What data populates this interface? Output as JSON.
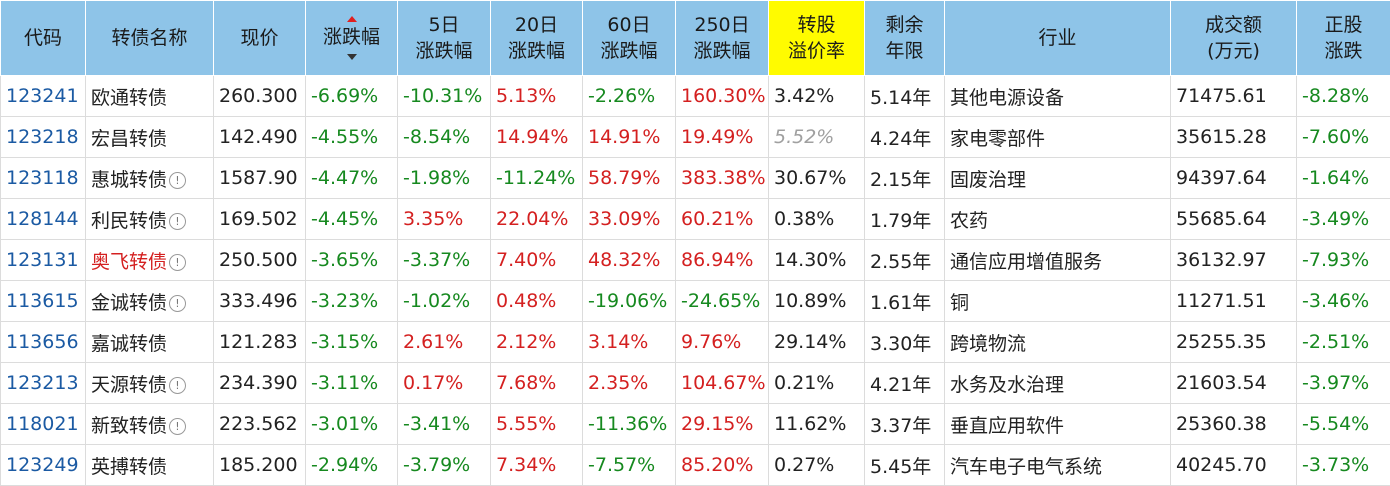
{
  "headers": {
    "code": "代码",
    "name": "转债名称",
    "price": "现价",
    "change": "涨跌幅",
    "d5_line1": "5日",
    "d5_line2": "涨跌幅",
    "d20_line1": "20日",
    "d20_line2": "涨跌幅",
    "d60_line1": "60日",
    "d60_line2": "涨跌幅",
    "d250_line1": "250日",
    "d250_line2": "涨跌幅",
    "premium_line1": "转股",
    "premium_line2": "溢价率",
    "remain_line1": "剩余",
    "remain_line2": "年限",
    "industry": "行业",
    "volume_line1": "成交额",
    "volume_line2": "(万元)",
    "stock_line1": "正股",
    "stock_line2": "涨跌"
  },
  "colors": {
    "header_bg": "#8ec4e8",
    "highlight_header_bg": "#fffb00",
    "up": "#d42020",
    "down": "#16891f",
    "code": "#1b5aa3"
  },
  "rows": [
    {
      "code": "123241",
      "name": "欧通转债",
      "name_red": false,
      "info": false,
      "price": "260.300",
      "change": "-6.69%",
      "d5": "-10.31%",
      "d20": "5.13%",
      "d60": "-2.26%",
      "d250": "160.30%",
      "premium": "3.42%",
      "premium_italic": false,
      "remain": "5.14年",
      "industry": "其他电源设备",
      "volume": "71475.61",
      "stock": "-8.28%"
    },
    {
      "code": "123218",
      "name": "宏昌转债",
      "name_red": false,
      "info": false,
      "price": "142.490",
      "change": "-4.55%",
      "d5": "-8.54%",
      "d20": "14.94%",
      "d60": "14.91%",
      "d250": "19.49%",
      "premium": "5.52%",
      "premium_italic": true,
      "remain": "4.24年",
      "industry": "家电零部件",
      "volume": "35615.28",
      "stock": "-7.60%"
    },
    {
      "code": "123118",
      "name": "惠城转债",
      "name_red": false,
      "info": true,
      "price": "1587.90",
      "change": "-4.47%",
      "d5": "-1.98%",
      "d20": "-11.24%",
      "d60": "58.79%",
      "d250": "383.38%",
      "premium": "30.67%",
      "premium_italic": false,
      "remain": "2.15年",
      "industry": "固废治理",
      "volume": "94397.64",
      "stock": "-1.64%"
    },
    {
      "code": "128144",
      "name": "利民转债",
      "name_red": false,
      "info": true,
      "price": "169.502",
      "change": "-4.45%",
      "d5": "3.35%",
      "d20": "22.04%",
      "d60": "33.09%",
      "d250": "60.21%",
      "premium": "0.38%",
      "premium_italic": false,
      "remain": "1.79年",
      "industry": "农药",
      "volume": "55685.64",
      "stock": "-3.49%"
    },
    {
      "code": "123131",
      "name": "奥飞转债",
      "name_red": true,
      "info": true,
      "price": "250.500",
      "change": "-3.65%",
      "d5": "-3.37%",
      "d20": "7.40%",
      "d60": "48.32%",
      "d250": "86.94%",
      "premium": "14.30%",
      "premium_italic": false,
      "remain": "2.55年",
      "industry": "通信应用增值服务",
      "volume": "36132.97",
      "stock": "-7.93%"
    },
    {
      "code": "113615",
      "name": "金诚转债",
      "name_red": false,
      "info": true,
      "price": "333.496",
      "change": "-3.23%",
      "d5": "-1.02%",
      "d20": "0.48%",
      "d60": "-19.06%",
      "d250": "-24.65%",
      "premium": "10.89%",
      "premium_italic": false,
      "remain": "1.61年",
      "industry": "铜",
      "volume": "11271.51",
      "stock": "-3.46%"
    },
    {
      "code": "113656",
      "name": "嘉诚转债",
      "name_red": false,
      "info": false,
      "price": "121.283",
      "change": "-3.15%",
      "d5": "2.61%",
      "d20": "2.12%",
      "d60": "3.14%",
      "d250": "9.76%",
      "premium": "29.14%",
      "premium_italic": false,
      "remain": "3.30年",
      "industry": "跨境物流",
      "volume": "25255.35",
      "stock": "-2.51%"
    },
    {
      "code": "123213",
      "name": "天源转债",
      "name_red": false,
      "info": true,
      "price": "234.390",
      "change": "-3.11%",
      "d5": "0.17%",
      "d20": "7.68%",
      "d60": "2.35%",
      "d250": "104.67%",
      "premium": "0.21%",
      "premium_italic": false,
      "remain": "4.21年",
      "industry": "水务及水治理",
      "volume": "21603.54",
      "stock": "-3.97%"
    },
    {
      "code": "118021",
      "name": "新致转债",
      "name_red": false,
      "info": true,
      "price": "223.562",
      "change": "-3.01%",
      "d5": "-3.41%",
      "d20": "5.55%",
      "d60": "-11.36%",
      "d250": "29.15%",
      "premium": "11.62%",
      "premium_italic": false,
      "remain": "3.37年",
      "industry": "垂直应用软件",
      "volume": "25360.38",
      "stock": "-5.54%"
    },
    {
      "code": "123249",
      "name": "英搏转债",
      "name_red": false,
      "info": false,
      "price": "185.200",
      "change": "-2.94%",
      "d5": "-3.79%",
      "d20": "7.34%",
      "d60": "-7.57%",
      "d250": "85.20%",
      "premium": "0.27%",
      "premium_italic": false,
      "remain": "5.45年",
      "industry": "汽车电子电气系统",
      "volume": "40245.70",
      "stock": "-3.73%"
    }
  ]
}
